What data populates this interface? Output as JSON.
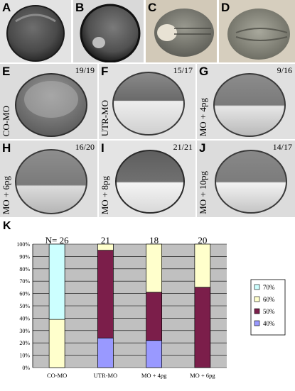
{
  "panels": [
    {
      "letter": "A",
      "ratio": "",
      "condition": ""
    },
    {
      "letter": "B",
      "ratio": "",
      "condition": ""
    },
    {
      "letter": "C",
      "ratio": "",
      "condition": ""
    },
    {
      "letter": "D",
      "ratio": "",
      "condition": ""
    },
    {
      "letter": "E",
      "ratio": "19/19",
      "condition": "CO-MO"
    },
    {
      "letter": "F",
      "ratio": "15/17",
      "condition": "UTR-MO"
    },
    {
      "letter": "G",
      "ratio": "9/16",
      "condition": "MO + 4pg"
    },
    {
      "letter": "H",
      "ratio": "16/20",
      "condition": "MO + 6pg"
    },
    {
      "letter": "I",
      "ratio": "21/21",
      "condition": "MO + 8pg"
    },
    {
      "letter": "J",
      "ratio": "14/17",
      "condition": "MO + 10pg"
    }
  ],
  "chart_label": "K",
  "chart_data": {
    "type": "bar",
    "stacked": true,
    "categories": [
      "CO-MO",
      "UTR-MO",
      "MO + 4pg",
      "MO + 6pg"
    ],
    "n_prefix": "N=",
    "n_values": [
      26,
      21,
      18,
      20
    ],
    "yticks": [
      "0%",
      "10%",
      "20%",
      "30%",
      "40%",
      "50%",
      "60%",
      "70%",
      "80%",
      "90%",
      "100%"
    ],
    "ylim": [
      0,
      100
    ],
    "series": [
      {
        "name": "40%",
        "color": "#9999ff",
        "values": [
          0,
          24,
          22,
          0
        ]
      },
      {
        "name": "50%",
        "color": "#7b1e4a",
        "values": [
          0,
          71,
          39,
          65
        ]
      },
      {
        "name": "60%",
        "color": "#ffffcc",
        "values": [
          39,
          5,
          39,
          35
        ]
      },
      {
        "name": "70%",
        "color": "#ccffff",
        "values": [
          61,
          0,
          0,
          0
        ]
      }
    ],
    "legend_order": [
      "70%",
      "60%",
      "50%",
      "40%"
    ],
    "legend_position": "right",
    "plot_background": "#c0c0c0",
    "grid": true
  }
}
